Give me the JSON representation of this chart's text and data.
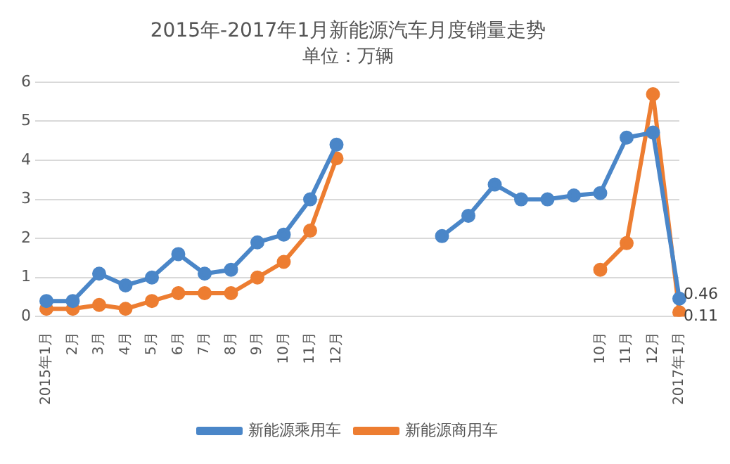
{
  "chart_data": {
    "type": "line",
    "title": "2015年-2017年1月新能源汽车月度销量走势",
    "subtitle": "单位：万辆",
    "categories": [
      "2015年1月",
      "2月",
      "3月",
      "4月",
      "5月",
      "6月",
      "7月",
      "8月",
      "9月",
      "10月",
      "11月",
      "12月",
      null,
      null,
      null,
      null,
      null,
      null,
      null,
      null,
      null,
      "10月",
      "11月",
      "12月",
      "2017年1月"
    ],
    "series": [
      {
        "name": "新能源乘用车",
        "color": "#4a86c8",
        "values": [
          0.4,
          0.4,
          1.1,
          0.8,
          1.0,
          1.6,
          1.1,
          1.2,
          1.9,
          2.1,
          3.0,
          4.4,
          null,
          null,
          null,
          2.06,
          2.58,
          3.38,
          3.0,
          3.0,
          3.1,
          3.16,
          4.58,
          4.71,
          0.46
        ],
        "value_labels": [
          null,
          null,
          null,
          null,
          null,
          null,
          null,
          null,
          null,
          null,
          null,
          null,
          null,
          null,
          null,
          null,
          null,
          null,
          null,
          null,
          null,
          null,
          null,
          null,
          "0.46"
        ]
      },
      {
        "name": "新能源商用车",
        "color": "#ed7d31",
        "values": [
          0.2,
          0.2,
          0.3,
          0.2,
          0.4,
          0.6,
          0.6,
          0.6,
          1.0,
          1.4,
          2.2,
          4.05,
          null,
          null,
          null,
          null,
          null,
          null,
          null,
          null,
          null,
          1.2,
          1.88,
          5.69,
          0.11
        ],
        "value_labels": [
          null,
          null,
          null,
          null,
          null,
          null,
          null,
          null,
          null,
          null,
          null,
          null,
          null,
          null,
          null,
          null,
          null,
          null,
          null,
          null,
          null,
          null,
          null,
          null,
          "0.11"
        ]
      }
    ],
    "ylim": [
      0,
      6
    ],
    "yticks": [
      0,
      1,
      2,
      3,
      4,
      5,
      6
    ],
    "grid": "y",
    "legend": "bottom",
    "marker": "circle",
    "line_style": "solid"
  }
}
